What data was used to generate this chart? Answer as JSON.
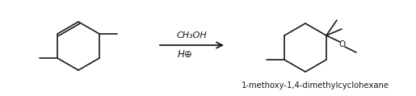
{
  "reagent_line1": "CH₃OH",
  "reagent_line2": "H⊕",
  "product_label": "1-methoxy-1,4-dimethylcyclohexane",
  "bg_color": "#ffffff",
  "line_color": "#1a1a1a",
  "text_color": "#1a1a1a",
  "fig_width": 5.15,
  "fig_height": 1.19,
  "dpi": 100
}
